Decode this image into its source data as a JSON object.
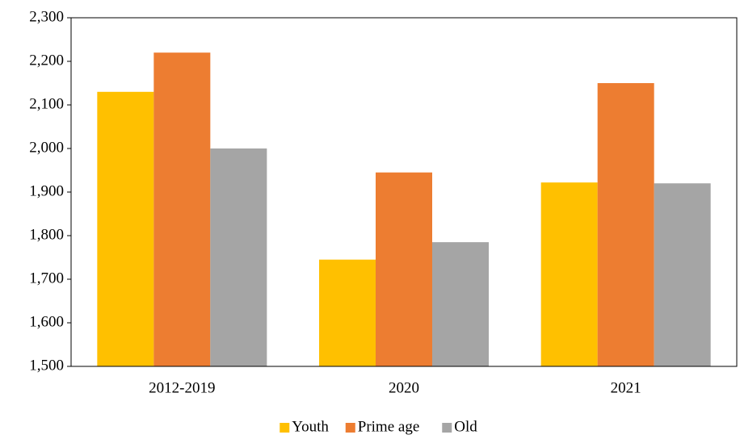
{
  "chart_data": {
    "type": "bar",
    "categories": [
      "2012-2019",
      "2020",
      "2021"
    ],
    "series": [
      {
        "name": "Youth",
        "color": "#ffc000",
        "values": [
          2130,
          1745,
          1922
        ]
      },
      {
        "name": "Prime age",
        "color": "#ed7d31",
        "values": [
          2220,
          1945,
          2150
        ]
      },
      {
        "name": "Old",
        "color": "#a5a5a5",
        "values": [
          2000,
          1785,
          1920
        ]
      }
    ],
    "ylim": [
      1500,
      2300
    ],
    "yticks": [
      {
        "value": 1500,
        "label": "1,500"
      },
      {
        "value": 1600,
        "label": "1,600"
      },
      {
        "value": 1700,
        "label": "1,700"
      },
      {
        "value": 1800,
        "label": "1,800"
      },
      {
        "value": 1900,
        "label": "1,900"
      },
      {
        "value": 2000,
        "label": "2,000"
      },
      {
        "value": 2100,
        "label": "2,100"
      },
      {
        "value": 2200,
        "label": "2,200"
      },
      {
        "value": 2300,
        "label": "2,300"
      }
    ],
    "legend": "bottom"
  }
}
